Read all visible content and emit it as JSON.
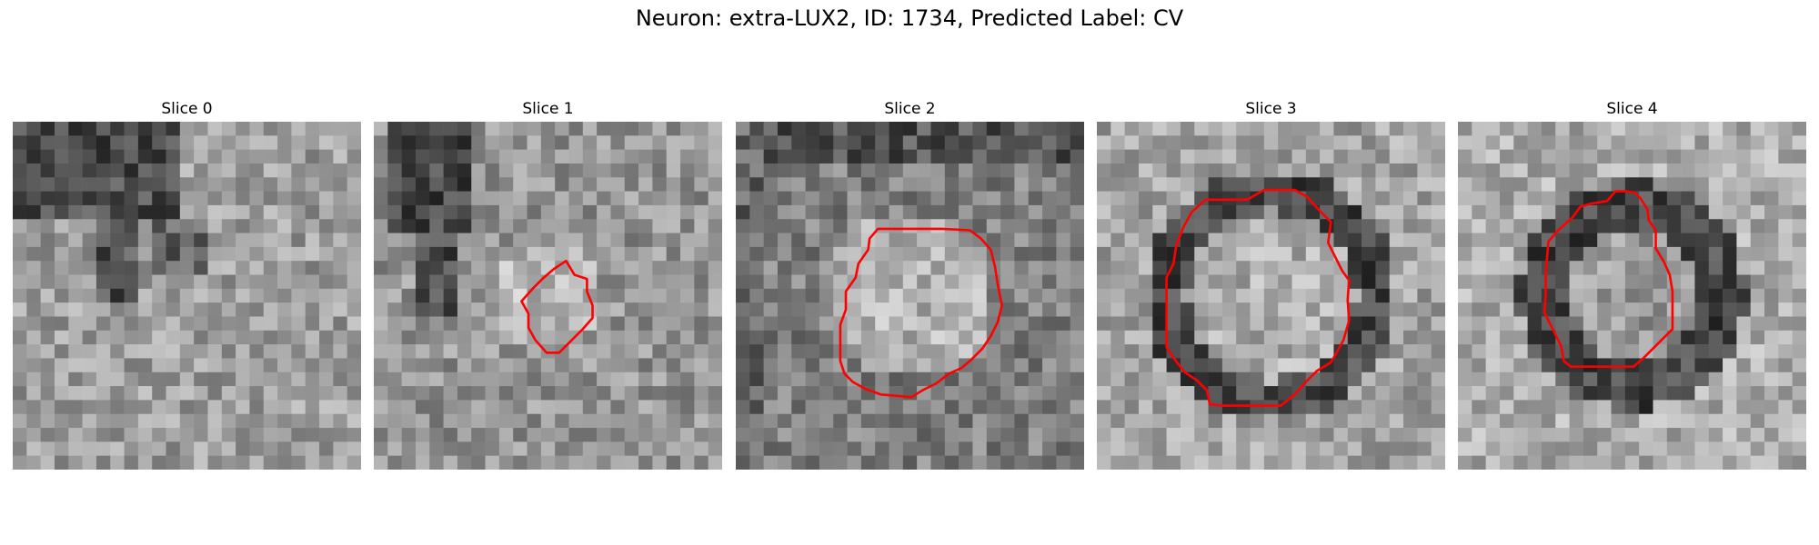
{
  "figure": {
    "title": "Neuron: extra-LUX2, ID: 1734, Predicted Label: CV",
    "contour_color": "#ff0000"
  },
  "panels": [
    {
      "title": "Slice 0",
      "has_contour": false,
      "contour": []
    },
    {
      "title": "Slice 1",
      "has_contour": true,
      "contour": [
        [
          14.4,
          11.0
        ],
        [
          13.8,
          10.0
        ],
        [
          12.9,
          10.6
        ],
        [
          12.2,
          11.2
        ],
        [
          11.4,
          12.0
        ],
        [
          10.6,
          12.9
        ],
        [
          11.1,
          13.8
        ],
        [
          11.1,
          14.8
        ],
        [
          11.6,
          15.7
        ],
        [
          12.4,
          16.6
        ],
        [
          13.3,
          16.6
        ],
        [
          14.2,
          15.7
        ],
        [
          15.0,
          14.9
        ],
        [
          15.7,
          14.1
        ],
        [
          15.7,
          13.2
        ],
        [
          15.3,
          12.2
        ],
        [
          15.3,
          11.3
        ]
      ]
    },
    {
      "title": "Slice 2",
      "has_contour": true,
      "contour": [
        [
          13.2,
          7.7
        ],
        [
          10.2,
          7.7
        ],
        [
          9.6,
          8.4
        ],
        [
          9.5,
          9.2
        ],
        [
          8.8,
          10.2
        ],
        [
          8.6,
          11.2
        ],
        [
          7.9,
          12.2
        ],
        [
          7.9,
          13.5
        ],
        [
          7.5,
          14.6
        ],
        [
          7.5,
          17.2
        ],
        [
          7.8,
          18.1
        ],
        [
          8.4,
          18.7
        ],
        [
          9.3,
          19.2
        ],
        [
          10.4,
          19.6
        ],
        [
          11.6,
          19.7
        ],
        [
          12.6,
          19.8
        ],
        [
          13.4,
          19.3
        ],
        [
          14.4,
          18.8
        ],
        [
          15.3,
          18.1
        ],
        [
          16.2,
          17.7
        ],
        [
          16.9,
          17.1
        ],
        [
          17.7,
          16.3
        ],
        [
          18.3,
          15.4
        ],
        [
          18.8,
          14.4
        ],
        [
          19.1,
          13.2
        ],
        [
          18.8,
          11.7
        ],
        [
          18.6,
          10.4
        ],
        [
          18.3,
          9.2
        ],
        [
          17.6,
          8.4
        ],
        [
          16.8,
          7.8
        ],
        [
          14.8,
          7.7
        ]
      ]
    },
    {
      "title": "Slice 3",
      "has_contour": true,
      "contour": [
        [
          12.0,
          4.9
        ],
        [
          10.8,
          5.6
        ],
        [
          9.4,
          5.6
        ],
        [
          7.8,
          5.6
        ],
        [
          6.8,
          6.5
        ],
        [
          6.2,
          7.6
        ],
        [
          5.7,
          8.9
        ],
        [
          5.5,
          10.2
        ],
        [
          5.0,
          11.2
        ],
        [
          5.0,
          13.7
        ],
        [
          5.0,
          16.2
        ],
        [
          5.6,
          17.1
        ],
        [
          6.3,
          18.0
        ],
        [
          7.2,
          18.6
        ],
        [
          7.9,
          19.3
        ],
        [
          8.1,
          20.3
        ],
        [
          9.0,
          20.4
        ],
        [
          11.0,
          20.4
        ],
        [
          13.2,
          20.4
        ],
        [
          14.2,
          19.6
        ],
        [
          15.0,
          18.7
        ],
        [
          15.8,
          17.9
        ],
        [
          16.8,
          17.3
        ],
        [
          17.2,
          16.6
        ],
        [
          17.7,
          15.7
        ],
        [
          18.1,
          14.3
        ],
        [
          18.0,
          12.8
        ],
        [
          18.1,
          11.4
        ],
        [
          17.6,
          10.7
        ],
        [
          16.6,
          8.7
        ],
        [
          16.8,
          7.2
        ],
        [
          15.9,
          6.3
        ],
        [
          15.1,
          5.4
        ],
        [
          14.2,
          4.9
        ],
        [
          13.5,
          4.9
        ]
      ]
    },
    {
      "title": "Slice 4",
      "has_contour": true,
      "contour": [
        [
          13.1,
          5.5
        ],
        [
          12.7,
          5.1
        ],
        [
          12.1,
          5.0
        ],
        [
          11.3,
          5.0
        ],
        [
          10.7,
          5.7
        ],
        [
          9.5,
          5.9
        ],
        [
          8.8,
          6.1
        ],
        [
          8.2,
          6.9
        ],
        [
          7.2,
          7.8
        ],
        [
          6.5,
          8.6
        ],
        [
          6.4,
          9.7
        ],
        [
          6.3,
          11.0
        ],
        [
          6.3,
          12.4
        ],
        [
          6.2,
          13.7
        ],
        [
          6.8,
          14.9
        ],
        [
          7.4,
          16.1
        ],
        [
          7.6,
          17.2
        ],
        [
          8.1,
          17.6
        ],
        [
          9.4,
          17.6
        ],
        [
          11.0,
          17.6
        ],
        [
          12.6,
          17.6
        ],
        [
          13.3,
          17.0
        ],
        [
          14.1,
          16.2
        ],
        [
          14.9,
          15.4
        ],
        [
          15.4,
          14.9
        ],
        [
          15.4,
          13.5
        ],
        [
          15.4,
          12.2
        ],
        [
          15.2,
          11.0
        ],
        [
          14.8,
          10.1
        ],
        [
          14.2,
          9.1
        ],
        [
          14.2,
          7.8
        ],
        [
          13.7,
          7.1
        ],
        [
          13.6,
          6.3
        ]
      ]
    }
  ]
}
